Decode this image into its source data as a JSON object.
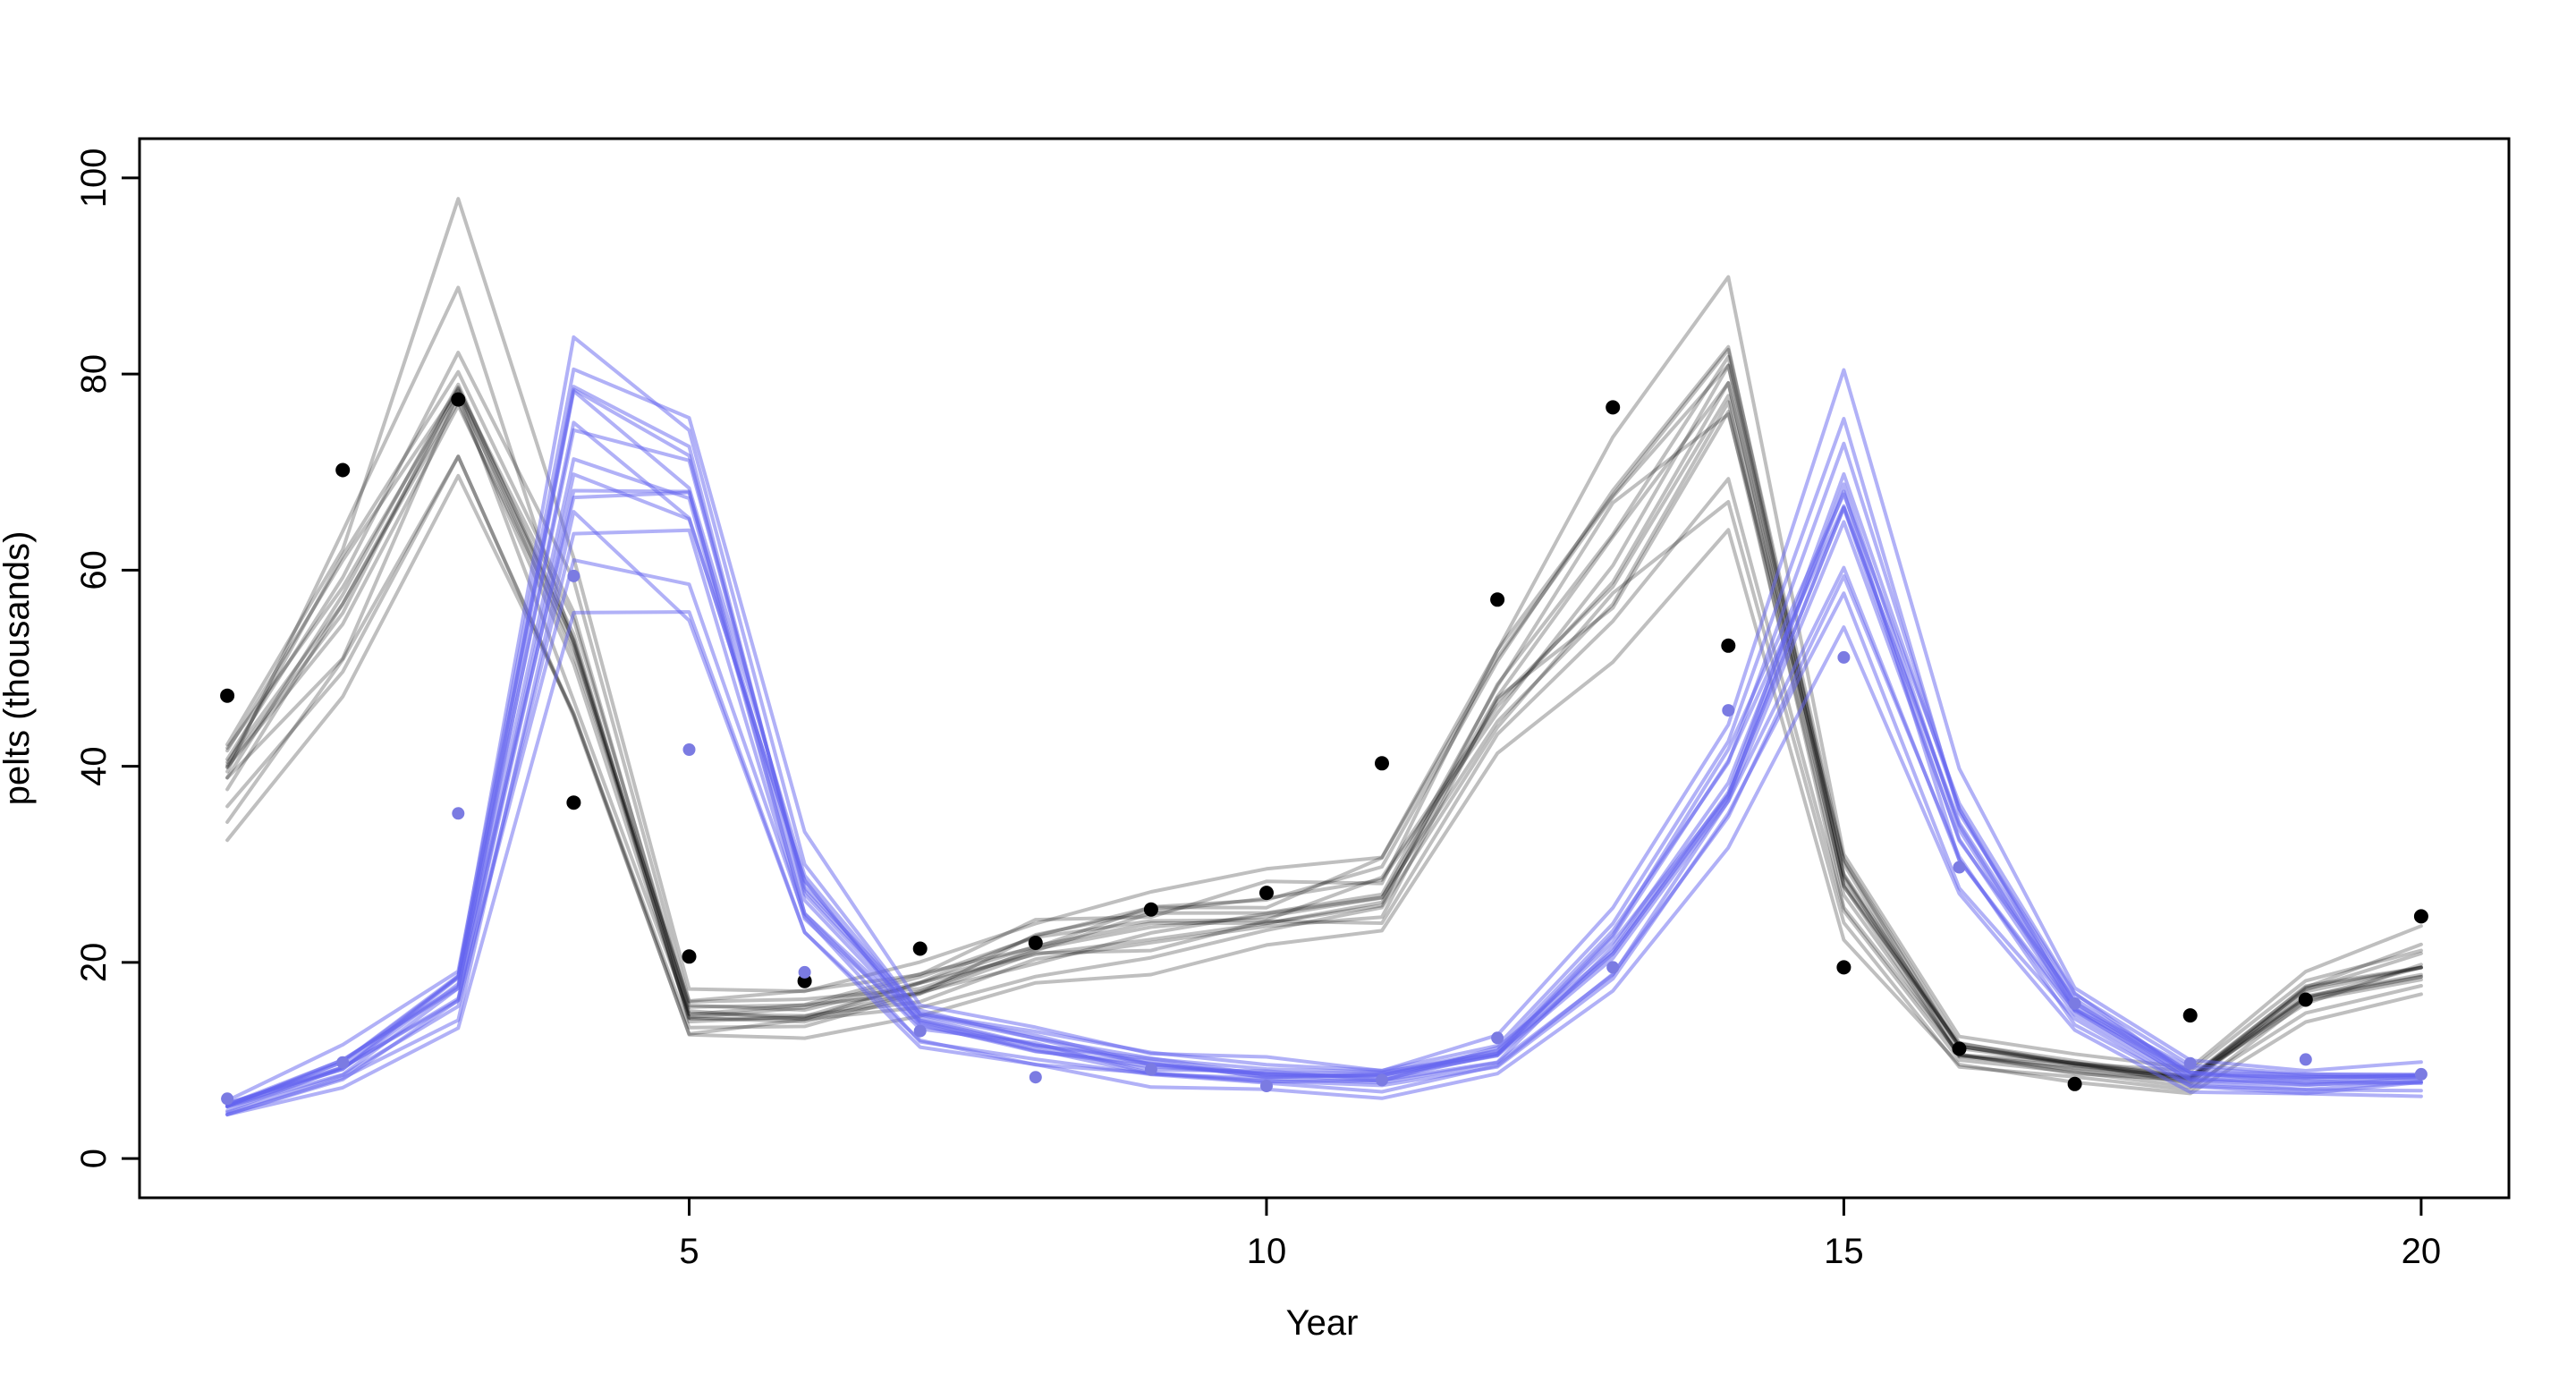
{
  "chart_data": {
    "type": "line",
    "title": "",
    "xlabel": "Year",
    "ylabel": "pelts (thousands)",
    "xlim": [
      1,
      20
    ],
    "ylim": [
      0,
      100
    ],
    "x_ticks": [
      5,
      10,
      15,
      20
    ],
    "y_ticks": [
      0,
      20,
      40,
      60,
      80,
      100
    ],
    "grid": false,
    "legend": "none",
    "years": [
      1,
      2,
      3,
      4,
      5,
      6,
      7,
      8,
      9,
      10,
      11,
      12,
      13,
      14,
      15,
      16,
      17,
      18,
      19,
      20
    ],
    "observed_points": {
      "hare": {
        "label": "hare pelts (black points)",
        "color": "#000000",
        "values": [
          47.2,
          70.2,
          77.4,
          36.3,
          20.6,
          18.1,
          21.4,
          22.0,
          25.4,
          27.1,
          40.3,
          57.0,
          76.6,
          52.3,
          19.5,
          11.2,
          7.6,
          14.6,
          16.2,
          24.7
        ]
      },
      "lynx": {
        "label": "lynx pelts (blue points)",
        "color": "#7b7be2",
        "values": [
          6.1,
          9.8,
          35.2,
          59.4,
          41.7,
          19.0,
          13.0,
          8.3,
          9.1,
          7.4,
          8.0,
          12.3,
          19.5,
          45.7,
          51.1,
          29.7,
          15.8,
          9.7,
          10.1,
          8.6
        ]
      }
    },
    "posterior_draws": {
      "n_draws": 15,
      "hare": {
        "label": "hare posterior draw lines (gray/black spaghetti)",
        "color": "rgba(0,0,0,0.25)",
        "median": [
          39,
          57,
          80.5,
          52,
          15,
          15,
          17.5,
          21.5,
          23.5,
          25,
          27.5,
          47,
          62,
          78,
          28,
          11,
          9.5,
          8,
          17,
          19.5
        ],
        "scale_factors": [
          1.15,
          0.84,
          1.06,
          0.95,
          1.02,
          0.98,
          1.0,
          1.04,
          0.92,
          0.97,
          1.08,
          1.01,
          0.9,
          1.03,
          0.99
        ]
      },
      "lynx": {
        "label": "lynx posterior draw lines (blue spaghetti)",
        "color": "rgba(100,100,240,0.5)",
        "median": [
          5.2,
          9.3,
          17,
          72,
          66,
          27,
          14,
          11.5,
          9.5,
          8.5,
          8,
          10.5,
          21,
          38,
          67,
          33,
          15.5,
          8.5,
          7.8,
          8.2
        ],
        "scale_factors": [
          1.18,
          0.81,
          1.07,
          0.94,
          1.03,
          0.97,
          1.0,
          1.05,
          0.9,
          0.98,
          1.1,
          1.02,
          0.88,
          1.04,
          0.99
        ]
      },
      "jitter": 0.06
    },
    "style": {
      "background": "#ffffff",
      "box_color": "#000000",
      "line_width": 4,
      "axis_width": 3,
      "point_radius_hare": 8,
      "point_radius_lynx": 7
    }
  }
}
